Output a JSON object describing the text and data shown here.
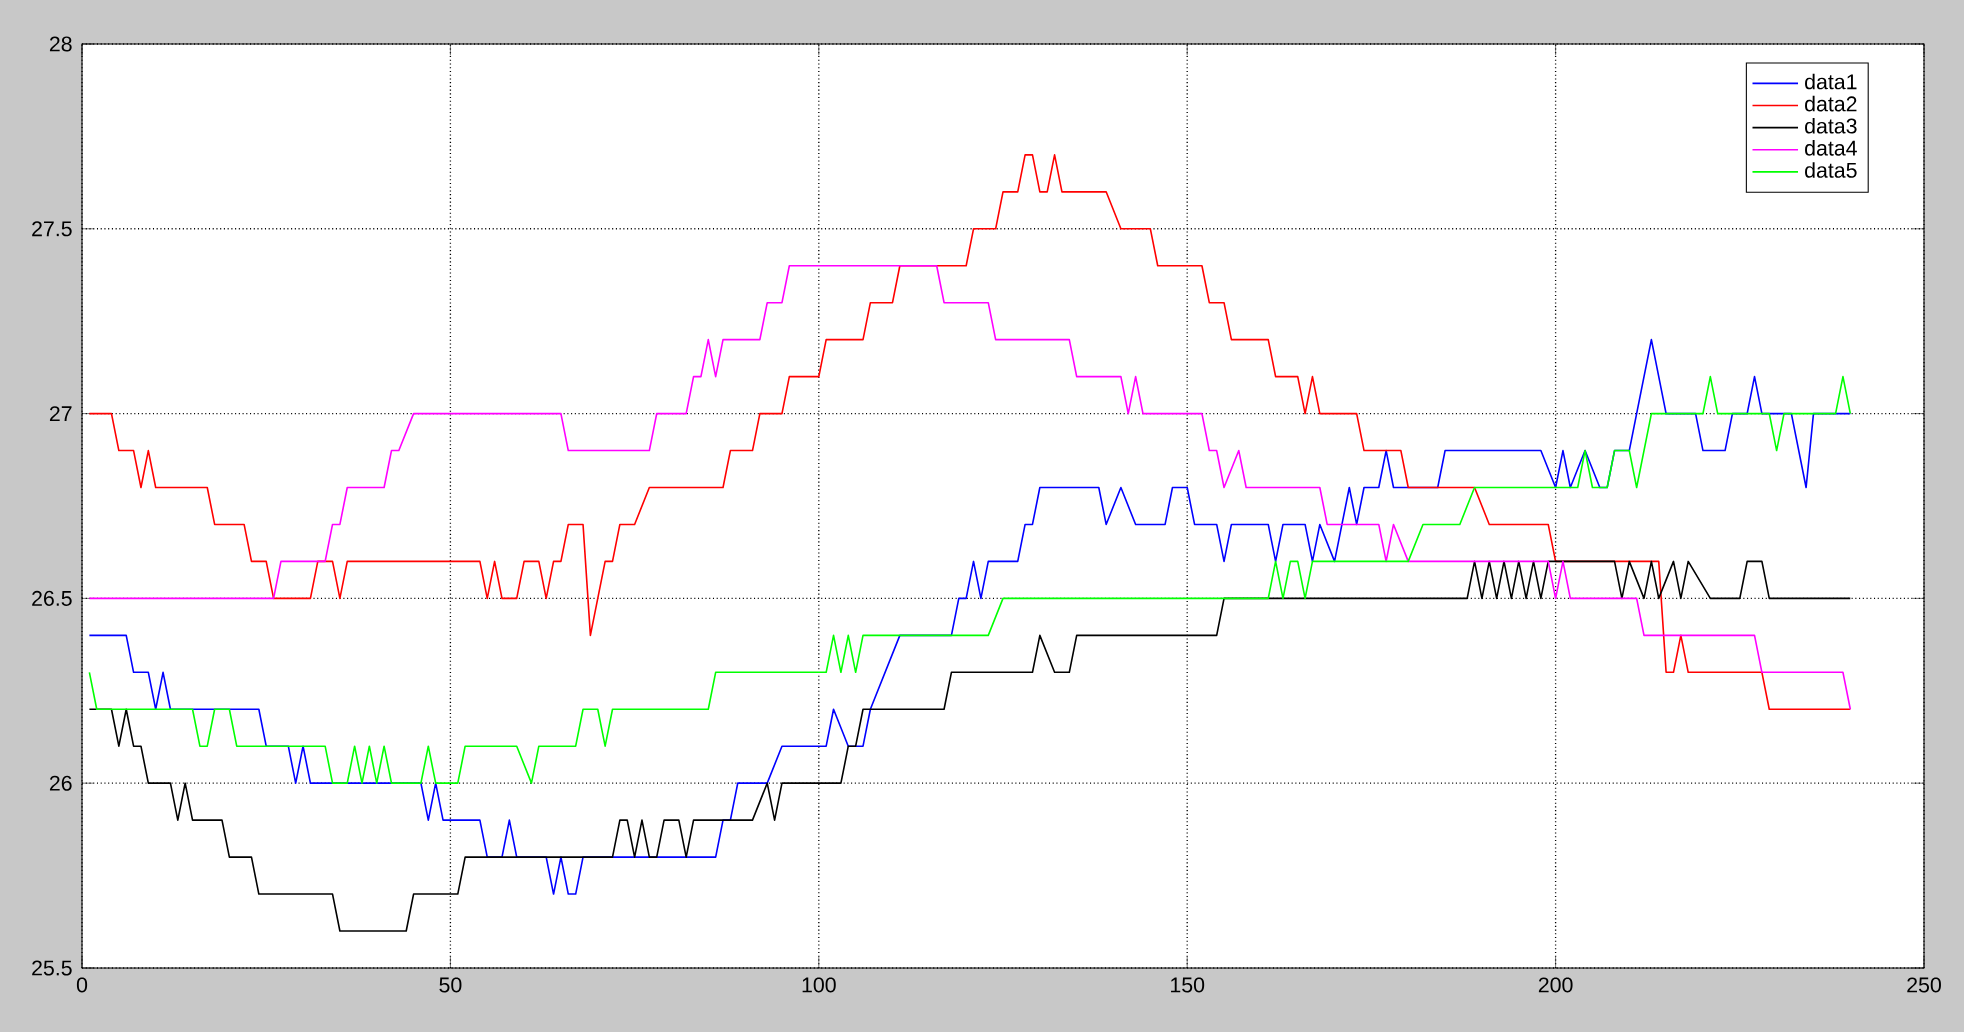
{
  "chart_data": {
    "type": "line",
    "xlim": [
      0,
      250
    ],
    "ylim": [
      25.5,
      28
    ],
    "xticks": [
      0,
      50,
      100,
      150,
      200,
      250
    ],
    "yticks": [
      25.5,
      26,
      26.5,
      27,
      27.5,
      28
    ],
    "grid": true,
    "legend": "top right",
    "series": [
      {
        "name": "data1",
        "color": "#0000ff",
        "x": [
          1,
          6,
          7,
          9,
          10,
          11,
          12,
          24,
          25,
          28,
          29,
          30,
          31,
          46,
          47,
          48,
          49,
          54,
          55,
          57,
          58,
          59,
          63,
          64,
          65,
          66,
          67,
          68,
          86,
          87,
          88,
          89,
          93,
          95,
          101,
          102,
          104,
          106,
          107,
          111,
          118,
          119,
          120,
          121,
          122,
          123,
          127,
          128,
          129,
          130,
          138,
          139,
          141,
          143,
          147,
          148,
          150,
          151,
          154,
          155,
          156,
          161,
          162,
          163,
          166,
          167,
          168,
          170,
          172,
          173,
          174,
          176,
          177,
          178,
          184,
          185,
          198,
          200,
          201,
          202,
          204,
          206,
          207,
          208,
          210,
          211,
          213,
          215,
          219,
          220,
          223,
          224,
          226,
          227,
          228,
          232,
          234,
          235,
          240
        ],
        "values": [
          26.4,
          26.4,
          26.3,
          26.3,
          26.2,
          26.3,
          26.2,
          26.2,
          26.1,
          26.1,
          26.0,
          26.1,
          26.0,
          26.0,
          25.9,
          26.0,
          25.9,
          25.9,
          25.8,
          25.8,
          25.9,
          25.8,
          25.8,
          25.7,
          25.8,
          25.7,
          25.7,
          25.8,
          25.8,
          25.9,
          25.9,
          26.0,
          26.0,
          26.1,
          26.1,
          26.2,
          26.1,
          26.1,
          26.2,
          26.4,
          26.4,
          26.5,
          26.5,
          26.6,
          26.5,
          26.6,
          26.6,
          26.7,
          26.7,
          26.8,
          26.8,
          26.7,
          26.8,
          26.7,
          26.7,
          26.8,
          26.8,
          26.7,
          26.7,
          26.6,
          26.7,
          26.7,
          26.6,
          26.7,
          26.7,
          26.6,
          26.7,
          26.6,
          26.8,
          26.7,
          26.8,
          26.8,
          26.9,
          26.8,
          26.8,
          26.9,
          26.9,
          26.8,
          26.9,
          26.8,
          26.9,
          26.8,
          26.8,
          26.9,
          26.9,
          27.0,
          27.2,
          27.0,
          27.0,
          26.9,
          26.9,
          27.0,
          27.0,
          27.1,
          27.0,
          27.0,
          26.8,
          27.0,
          27.0
        ]
      },
      {
        "name": "data2",
        "color": "#ff0000",
        "x": [
          1,
          4,
          5,
          7,
          8,
          9,
          10,
          17,
          18,
          22,
          23,
          25,
          26,
          31,
          32,
          34,
          35,
          36,
          54,
          55,
          56,
          57,
          59,
          60,
          62,
          63,
          64,
          65,
          66,
          68,
          69,
          71,
          72,
          73,
          75,
          77,
          87,
          88,
          91,
          92,
          95,
          96,
          100,
          101,
          106,
          107,
          110,
          111,
          120,
          121,
          124,
          125,
          127,
          128,
          129,
          130,
          131,
          132,
          133,
          139,
          141,
          145,
          146,
          152,
          153,
          155,
          156,
          161,
          162,
          165,
          166,
          167,
          168,
          173,
          174,
          179,
          180,
          189,
          191,
          199,
          200,
          214,
          215,
          216,
          217,
          218,
          228,
          229,
          240
        ],
        "values": [
          27.0,
          27.0,
          26.9,
          26.9,
          26.8,
          26.9,
          26.8,
          26.8,
          26.7,
          26.7,
          26.6,
          26.6,
          26.5,
          26.5,
          26.6,
          26.6,
          26.5,
          26.6,
          26.6,
          26.5,
          26.6,
          26.5,
          26.5,
          26.6,
          26.6,
          26.5,
          26.6,
          26.6,
          26.7,
          26.7,
          26.4,
          26.6,
          26.6,
          26.7,
          26.7,
          26.8,
          26.8,
          26.9,
          26.9,
          27.0,
          27.0,
          27.1,
          27.1,
          27.2,
          27.2,
          27.3,
          27.3,
          27.4,
          27.4,
          27.5,
          27.5,
          27.6,
          27.6,
          27.7,
          27.7,
          27.6,
          27.6,
          27.7,
          27.6,
          27.6,
          27.5,
          27.5,
          27.4,
          27.4,
          27.3,
          27.3,
          27.2,
          27.2,
          27.1,
          27.1,
          27.0,
          27.1,
          27.0,
          27.0,
          26.9,
          26.9,
          26.8,
          26.8,
          26.7,
          26.7,
          26.6,
          26.6,
          26.3,
          26.3,
          26.4,
          26.3,
          26.3,
          26.2,
          26.2
        ]
      },
      {
        "name": "data3",
        "color": "#000000",
        "x": [
          1,
          4,
          5,
          6,
          7,
          8,
          9,
          12,
          13,
          14,
          15,
          19,
          20,
          23,
          24,
          34,
          35,
          44,
          45,
          51,
          52,
          72,
          73,
          74,
          75,
          76,
          77,
          78,
          79,
          81,
          82,
          83,
          91,
          93,
          94,
          95,
          103,
          104,
          105,
          106,
          117,
          118,
          129,
          130,
          132,
          134,
          135,
          154,
          155,
          188,
          189,
          190,
          191,
          192,
          193,
          194,
          195,
          196,
          197,
          198,
          199,
          208,
          209,
          210,
          212,
          213,
          214,
          216,
          217,
          218,
          221,
          225,
          226,
          228,
          229,
          240
        ],
        "values": [
          26.2,
          26.2,
          26.1,
          26.2,
          26.1,
          26.1,
          26.0,
          26.0,
          25.9,
          26.0,
          25.9,
          25.9,
          25.8,
          25.8,
          25.7,
          25.7,
          25.6,
          25.6,
          25.7,
          25.7,
          25.8,
          25.8,
          25.9,
          25.9,
          25.8,
          25.9,
          25.8,
          25.8,
          25.9,
          25.9,
          25.8,
          25.9,
          25.9,
          26.0,
          25.9,
          26.0,
          26.0,
          26.1,
          26.1,
          26.2,
          26.2,
          26.3,
          26.3,
          26.4,
          26.3,
          26.3,
          26.4,
          26.4,
          26.5,
          26.5,
          26.6,
          26.5,
          26.6,
          26.5,
          26.6,
          26.5,
          26.6,
          26.5,
          26.6,
          26.5,
          26.6,
          26.6,
          26.5,
          26.6,
          26.5,
          26.6,
          26.5,
          26.6,
          26.5,
          26.6,
          26.5,
          26.5,
          26.6,
          26.6,
          26.5,
          26.5
        ]
      },
      {
        "name": "data4",
        "color": "#ff00ff",
        "x": [
          1,
          26,
          27,
          33,
          34,
          35,
          36,
          41,
          42,
          43,
          45,
          65,
          66,
          77,
          78,
          82,
          83,
          84,
          85,
          86,
          87,
          92,
          93,
          95,
          96,
          116,
          117,
          123,
          124,
          134,
          135,
          141,
          142,
          143,
          144,
          152,
          153,
          154,
          155,
          157,
          158,
          168,
          169,
          176,
          177,
          178,
          180,
          199,
          200,
          201,
          202,
          211,
          212,
          227,
          228,
          239,
          240
        ],
        "values": [
          26.5,
          26.5,
          26.6,
          26.6,
          26.7,
          26.7,
          26.8,
          26.8,
          26.9,
          26.9,
          27.0,
          27.0,
          26.9,
          26.9,
          27.0,
          27.0,
          27.1,
          27.1,
          27.2,
          27.1,
          27.2,
          27.2,
          27.3,
          27.3,
          27.4,
          27.4,
          27.3,
          27.3,
          27.2,
          27.2,
          27.1,
          27.1,
          27.0,
          27.1,
          27.0,
          27.0,
          26.9,
          26.9,
          26.8,
          26.9,
          26.8,
          26.8,
          26.7,
          26.7,
          26.6,
          26.7,
          26.6,
          26.6,
          26.5,
          26.6,
          26.5,
          26.5,
          26.4,
          26.4,
          26.3,
          26.3,
          26.2
        ]
      },
      {
        "name": "data5",
        "color": "#00ff00",
        "x": [
          1,
          2,
          15,
          16,
          17,
          18,
          20,
          21,
          33,
          34,
          36,
          37,
          38,
          39,
          40,
          41,
          42,
          46,
          47,
          48,
          51,
          52,
          59,
          61,
          62,
          67,
          68,
          70,
          71,
          72,
          85,
          86,
          101,
          102,
          103,
          104,
          105,
          106,
          123,
          125,
          161,
          162,
          163,
          164,
          165,
          166,
          167,
          180,
          182,
          187,
          189,
          203,
          204,
          205,
          207,
          208,
          210,
          211,
          213,
          220,
          221,
          222,
          229,
          230,
          231,
          238,
          239,
          240
        ],
        "values": [
          26.3,
          26.2,
          26.2,
          26.1,
          26.1,
          26.2,
          26.2,
          26.1,
          26.1,
          26.0,
          26.0,
          26.1,
          26.0,
          26.1,
          26.0,
          26.1,
          26.0,
          26.0,
          26.1,
          26.0,
          26.0,
          26.1,
          26.1,
          26.0,
          26.1,
          26.1,
          26.2,
          26.2,
          26.1,
          26.2,
          26.2,
          26.3,
          26.3,
          26.4,
          26.3,
          26.4,
          26.3,
          26.4,
          26.4,
          26.5,
          26.5,
          26.6,
          26.5,
          26.6,
          26.6,
          26.5,
          26.6,
          26.6,
          26.7,
          26.7,
          26.8,
          26.8,
          26.9,
          26.8,
          26.8,
          26.9,
          26.9,
          26.8,
          27.0,
          27.0,
          27.1,
          27.0,
          27.0,
          26.9,
          27.0,
          27.0,
          27.1,
          27.0
        ]
      }
    ]
  }
}
